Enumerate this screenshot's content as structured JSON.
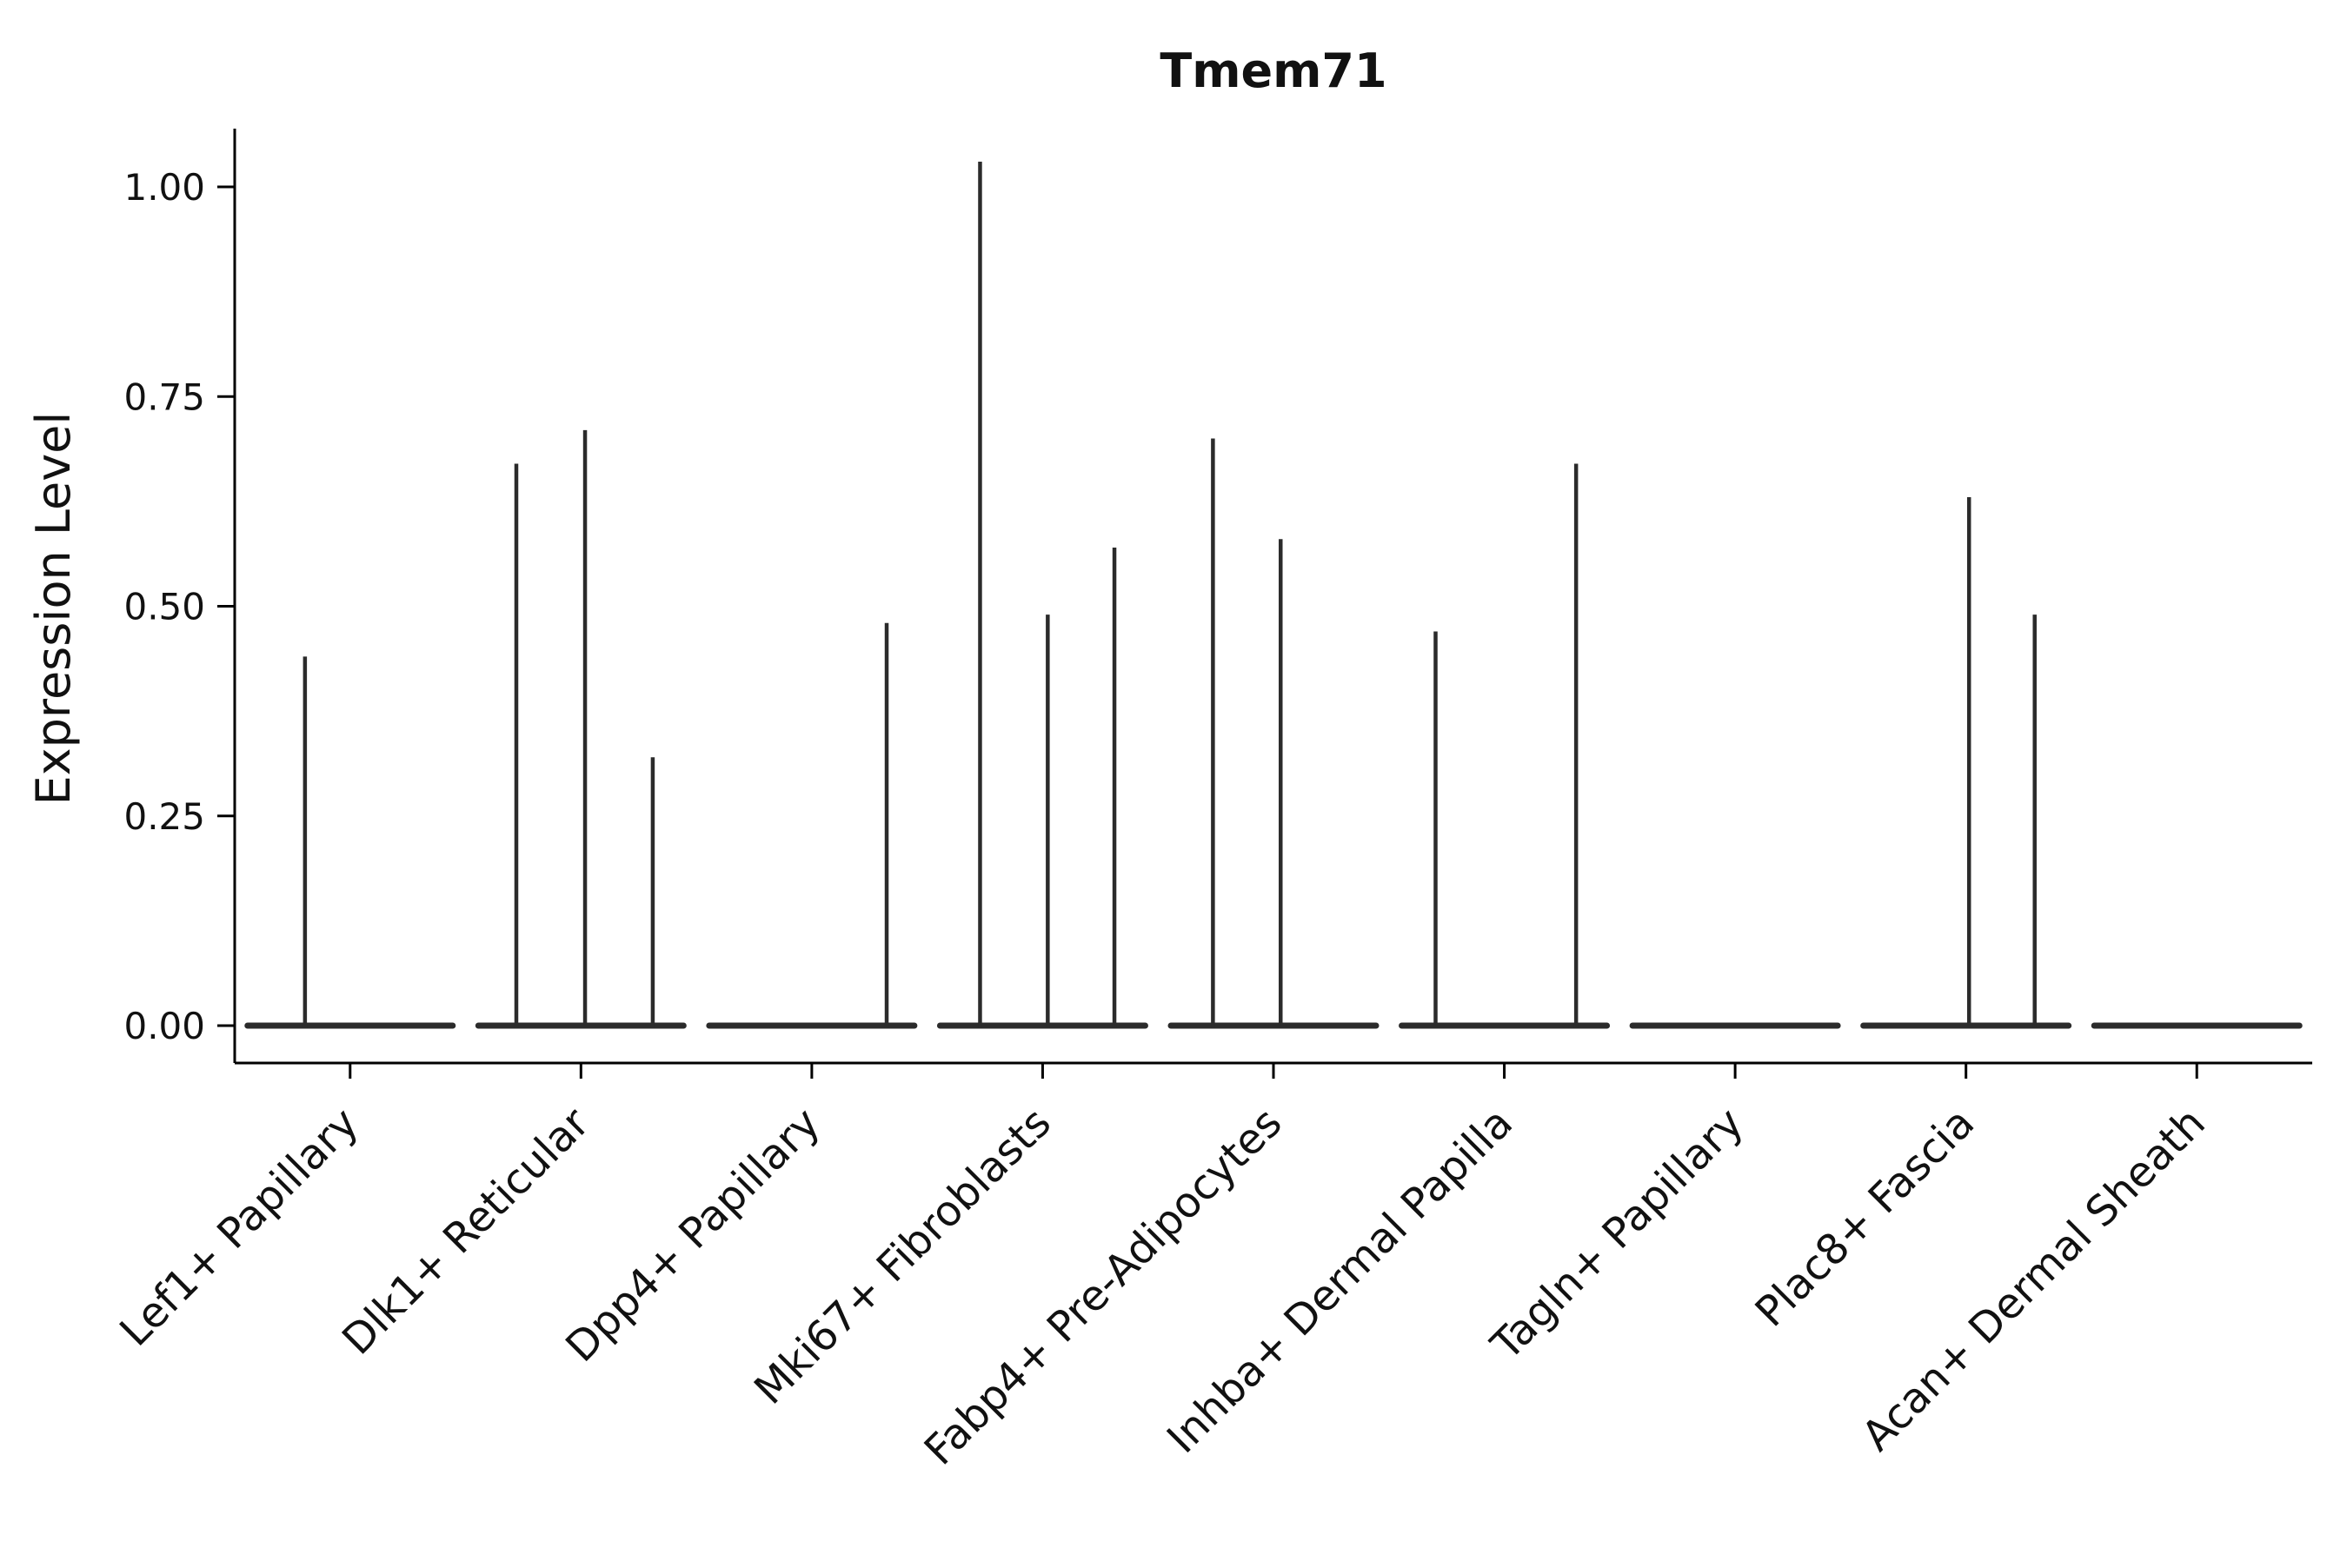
{
  "chart_data": {
    "type": "violin",
    "title": "Tmem71",
    "xlabel": "",
    "ylabel": "Expression Level",
    "ylim": [
      -0.045,
      1.07
    ],
    "yticks": [
      "0.00",
      "0.25",
      "0.50",
      "0.75",
      "1.00"
    ],
    "ytick_values": [
      0.0,
      0.25,
      0.5,
      0.75,
      1.0
    ],
    "grid": false,
    "legend": "none",
    "line_color": "#2b2b2b",
    "axis_color": "#000000",
    "text_color": "#111111",
    "background": "#ffffff",
    "categories": [
      "Lef1+ Papillary",
      "Dlk1+ Reticular",
      "Dpp4+ Papillary",
      "Mki67+ Fibroblasts",
      "Fabp4+ Pre-Adipocytes",
      "Inhba+ Dermal Papilla",
      "Tagln+ Papillary",
      "Plac8+ Fascia",
      "Acan+ Dermal Sheath"
    ],
    "groups": [
      {
        "category": "Lef1+ Papillary",
        "spikes": [
          {
            "offset": -0.44,
            "peak": 0.44
          }
        ]
      },
      {
        "category": "Dlk1+ Reticular",
        "spikes": [
          {
            "offset": -0.63,
            "peak": 0.67
          },
          {
            "offset": 0.04,
            "peak": 0.71
          },
          {
            "offset": 0.7,
            "peak": 0.32
          }
        ]
      },
      {
        "category": "Dpp4+ Papillary",
        "spikes": [
          {
            "offset": 0.73,
            "peak": 0.48
          }
        ]
      },
      {
        "category": "Mki67+ Fibroblasts",
        "spikes": [
          {
            "offset": -0.61,
            "peak": 1.03
          },
          {
            "offset": 0.05,
            "peak": 0.49
          },
          {
            "offset": 0.7,
            "peak": 0.57
          }
        ]
      },
      {
        "category": "Fabp4+ Pre-Adipocytes",
        "spikes": [
          {
            "offset": -0.59,
            "peak": 0.7
          },
          {
            "offset": 0.07,
            "peak": 0.58
          }
        ]
      },
      {
        "category": "Inhba+ Dermal Papilla",
        "spikes": [
          {
            "offset": -0.67,
            "peak": 0.47
          },
          {
            "offset": 0.7,
            "peak": 0.67
          }
        ]
      },
      {
        "category": "Tagln+ Papillary",
        "spikes": []
      },
      {
        "category": "Plac8+ Fascia",
        "spikes": [
          {
            "offset": 0.03,
            "peak": 0.63
          },
          {
            "offset": 0.67,
            "peak": 0.49
          }
        ]
      },
      {
        "category": "Acan+ Dermal Sheath",
        "spikes": []
      }
    ]
  }
}
